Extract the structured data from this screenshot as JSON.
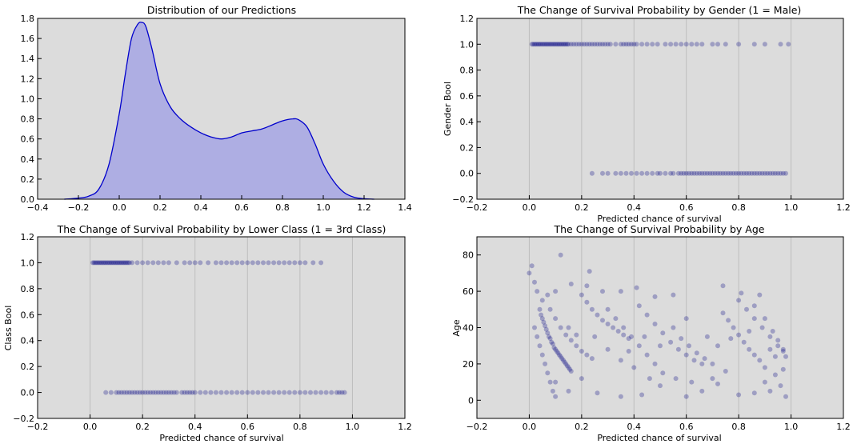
{
  "chart_data": [
    {
      "type": "area",
      "title": "Distribution of our Predictions",
      "xlabel": "",
      "ylabel": "",
      "xlim": [
        -0.4,
        1.4
      ],
      "ylim": [
        0.0,
        1.8
      ],
      "xticks": [
        "−0.4",
        "−0.2",
        "0.0",
        "0.2",
        "0.4",
        "0.6",
        "0.8",
        "1.0",
        "1.2",
        "1.4"
      ],
      "yticks": [
        "0.0",
        "0.2",
        "0.4",
        "0.6",
        "0.8",
        "1.0",
        "1.2",
        "1.4",
        "1.6",
        "1.8"
      ],
      "grid": false,
      "colors": {
        "line": "#0000cc",
        "fill": "#aeaee3",
        "background": "#dcdcdc"
      },
      "x": [
        -0.27,
        -0.2,
        -0.15,
        -0.1,
        -0.05,
        0.0,
        0.03,
        0.06,
        0.09,
        0.11,
        0.13,
        0.16,
        0.2,
        0.25,
        0.3,
        0.35,
        0.4,
        0.45,
        0.5,
        0.55,
        0.6,
        0.65,
        0.7,
        0.75,
        0.8,
        0.85,
        0.88,
        0.92,
        0.96,
        1.0,
        1.05,
        1.1,
        1.15,
        1.2,
        1.25
      ],
      "y": [
        0.0,
        0.01,
        0.03,
        0.1,
        0.35,
        0.85,
        1.25,
        1.6,
        1.74,
        1.76,
        1.72,
        1.5,
        1.15,
        0.92,
        0.8,
        0.72,
        0.66,
        0.62,
        0.6,
        0.62,
        0.66,
        0.68,
        0.7,
        0.74,
        0.78,
        0.8,
        0.79,
        0.72,
        0.55,
        0.35,
        0.18,
        0.07,
        0.02,
        0.005,
        0.0
      ]
    },
    {
      "type": "scatter",
      "title": "The Change of Survival Probability by Gender (1 = Male)",
      "xlabel": "Predicted chance of survival",
      "ylabel": "Gender Bool",
      "xlim": [
        -0.2,
        1.2
      ],
      "ylim": [
        -0.2,
        1.2
      ],
      "xticks": [
        "−0.2",
        "0.0",
        "0.2",
        "0.4",
        "0.6",
        "0.8",
        "1.0",
        "1.2"
      ],
      "yticks": [
        "−0.2",
        "0.0",
        "0.2",
        "0.4",
        "0.6",
        "0.8",
        "1.0",
        "1.2"
      ],
      "grid": true,
      "colors": {
        "marker": "#000080",
        "background": "#dcdcdc",
        "grid": "#bfbfbf"
      },
      "series": [
        {
          "y": 1,
          "x": [
            0.01,
            0.015,
            0.02,
            0.025,
            0.03,
            0.035,
            0.04,
            0.045,
            0.05,
            0.055,
            0.06,
            0.065,
            0.07,
            0.075,
            0.08,
            0.085,
            0.09,
            0.095,
            0.1,
            0.105,
            0.11,
            0.115,
            0.12,
            0.125,
            0.13,
            0.135,
            0.14,
            0.145,
            0.15,
            0.16,
            0.17,
            0.18,
            0.19,
            0.2,
            0.21,
            0.22,
            0.23,
            0.24,
            0.25,
            0.26,
            0.27,
            0.28,
            0.29,
            0.3,
            0.31,
            0.33,
            0.35,
            0.36,
            0.37,
            0.38,
            0.39,
            0.4,
            0.41,
            0.43,
            0.45,
            0.47,
            0.49,
            0.52,
            0.54,
            0.56,
            0.58,
            0.6,
            0.62,
            0.64,
            0.66,
            0.7,
            0.72,
            0.75,
            0.8,
            0.86,
            0.9,
            0.96,
            0.99
          ]
        },
        {
          "y": 0,
          "x": [
            0.24,
            0.28,
            0.3,
            0.33,
            0.35,
            0.37,
            0.39,
            0.41,
            0.43,
            0.45,
            0.47,
            0.49,
            0.5,
            0.52,
            0.54,
            0.55,
            0.57,
            0.58,
            0.59,
            0.6,
            0.61,
            0.62,
            0.63,
            0.64,
            0.65,
            0.66,
            0.67,
            0.68,
            0.69,
            0.7,
            0.71,
            0.72,
            0.73,
            0.74,
            0.75,
            0.76,
            0.77,
            0.78,
            0.79,
            0.8,
            0.81,
            0.82,
            0.83,
            0.84,
            0.85,
            0.86,
            0.87,
            0.88,
            0.89,
            0.9,
            0.91,
            0.92,
            0.93,
            0.94,
            0.95,
            0.96,
            0.97,
            0.98
          ]
        }
      ]
    },
    {
      "type": "scatter",
      "title": "The Change of Survival Probability by Lower Class (1 = 3rd Class)",
      "xlabel": "Predicted chance of survival",
      "ylabel": "Class Bool",
      "xlim": [
        -0.2,
        1.2
      ],
      "ylim": [
        -0.2,
        1.2
      ],
      "xticks": [
        "−0.2",
        "0.0",
        "0.2",
        "0.4",
        "0.6",
        "0.8",
        "1.0",
        "1.2"
      ],
      "yticks": [
        "−0.2",
        "0.0",
        "0.2",
        "0.4",
        "0.6",
        "0.8",
        "1.0",
        "1.2"
      ],
      "grid": true,
      "colors": {
        "marker": "#000080",
        "background": "#dcdcdc",
        "grid": "#bfbfbf"
      },
      "series": [
        {
          "y": 1,
          "x": [
            0.01,
            0.015,
            0.02,
            0.025,
            0.03,
            0.035,
            0.04,
            0.045,
            0.05,
            0.055,
            0.06,
            0.065,
            0.07,
            0.075,
            0.08,
            0.085,
            0.09,
            0.095,
            0.1,
            0.105,
            0.11,
            0.115,
            0.12,
            0.125,
            0.13,
            0.135,
            0.14,
            0.145,
            0.15,
            0.16,
            0.18,
            0.2,
            0.22,
            0.24,
            0.26,
            0.28,
            0.3,
            0.33,
            0.36,
            0.38,
            0.4,
            0.42,
            0.45,
            0.48,
            0.5,
            0.52,
            0.54,
            0.56,
            0.58,
            0.6,
            0.62,
            0.64,
            0.66,
            0.68,
            0.7,
            0.72,
            0.74,
            0.76,
            0.78,
            0.8,
            0.82,
            0.85,
            0.88
          ]
        },
        {
          "y": 0,
          "x": [
            0.06,
            0.08,
            0.1,
            0.11,
            0.12,
            0.13,
            0.14,
            0.15,
            0.16,
            0.17,
            0.18,
            0.19,
            0.2,
            0.21,
            0.22,
            0.23,
            0.24,
            0.25,
            0.26,
            0.27,
            0.28,
            0.29,
            0.3,
            0.31,
            0.32,
            0.33,
            0.35,
            0.36,
            0.37,
            0.38,
            0.39,
            0.4,
            0.42,
            0.44,
            0.46,
            0.48,
            0.5,
            0.52,
            0.54,
            0.56,
            0.58,
            0.6,
            0.62,
            0.64,
            0.66,
            0.68,
            0.7,
            0.72,
            0.74,
            0.76,
            0.78,
            0.8,
            0.82,
            0.84,
            0.86,
            0.88,
            0.9,
            0.92,
            0.94,
            0.95,
            0.96,
            0.97
          ]
        }
      ]
    },
    {
      "type": "scatter",
      "title": "The Change of Survival Probability by Age",
      "xlabel": "Predicted chance of survival",
      "ylabel": "Age",
      "xlim": [
        -0.2,
        1.2
      ],
      "ylim": [
        -10,
        90
      ],
      "xticks": [
        "−0.2",
        "0.0",
        "0.2",
        "0.4",
        "0.6",
        "0.8",
        "1.0",
        "1.2"
      ],
      "yticks": [
        "0",
        "20",
        "40",
        "60",
        "80"
      ],
      "grid": true,
      "colors": {
        "marker": "#000080",
        "background": "#dcdcdc",
        "grid": "#bfbfbf"
      },
      "points": [
        [
          0.0,
          70
        ],
        [
          0.01,
          74
        ],
        [
          0.02,
          65
        ],
        [
          0.03,
          60
        ],
        [
          0.05,
          55
        ],
        [
          0.07,
          58
        ],
        [
          0.1,
          60
        ],
        [
          0.12,
          80
        ],
        [
          0.16,
          64
        ],
        [
          0.23,
          71
        ],
        [
          0.22,
          63
        ],
        [
          0.28,
          60
        ],
        [
          0.35,
          60
        ],
        [
          0.41,
          62
        ],
        [
          0.48,
          57
        ],
        [
          0.55,
          58
        ],
        [
          0.74,
          63
        ],
        [
          0.81,
          59
        ],
        [
          0.88,
          58
        ],
        [
          0.04,
          50
        ],
        [
          0.045,
          47
        ],
        [
          0.05,
          45
        ],
        [
          0.055,
          43
        ],
        [
          0.06,
          41
        ],
        [
          0.065,
          39
        ],
        [
          0.07,
          37
        ],
        [
          0.075,
          35
        ],
        [
          0.08,
          34
        ],
        [
          0.085,
          32
        ],
        [
          0.09,
          31
        ],
        [
          0.095,
          29
        ],
        [
          0.1,
          28
        ],
        [
          0.105,
          27
        ],
        [
          0.11,
          26
        ],
        [
          0.115,
          25
        ],
        [
          0.12,
          24
        ],
        [
          0.125,
          23
        ],
        [
          0.13,
          22
        ],
        [
          0.135,
          21
        ],
        [
          0.14,
          20
        ],
        [
          0.145,
          19
        ],
        [
          0.15,
          18
        ],
        [
          0.155,
          17
        ],
        [
          0.16,
          16
        ],
        [
          0.02,
          40
        ],
        [
          0.03,
          35
        ],
        [
          0.04,
          30
        ],
        [
          0.05,
          25
        ],
        [
          0.06,
          20
        ],
        [
          0.07,
          15
        ],
        [
          0.08,
          10
        ],
        [
          0.09,
          5
        ],
        [
          0.1,
          2
        ],
        [
          0.08,
          50
        ],
        [
          0.1,
          45
        ],
        [
          0.12,
          40
        ],
        [
          0.14,
          36
        ],
        [
          0.16,
          33
        ],
        [
          0.18,
          30
        ],
        [
          0.2,
          27
        ],
        [
          0.22,
          25
        ],
        [
          0.24,
          23
        ],
        [
          0.2,
          58
        ],
        [
          0.22,
          54
        ],
        [
          0.24,
          50
        ],
        [
          0.26,
          47
        ],
        [
          0.28,
          44
        ],
        [
          0.3,
          42
        ],
        [
          0.32,
          40
        ],
        [
          0.34,
          38
        ],
        [
          0.36,
          36
        ],
        [
          0.38,
          34
        ],
        [
          0.3,
          50
        ],
        [
          0.33,
          45
        ],
        [
          0.36,
          40
        ],
        [
          0.39,
          35
        ],
        [
          0.42,
          30
        ],
        [
          0.45,
          25
        ],
        [
          0.48,
          20
        ],
        [
          0.51,
          15
        ],
        [
          0.42,
          52
        ],
        [
          0.45,
          47
        ],
        [
          0.48,
          42
        ],
        [
          0.51,
          37
        ],
        [
          0.54,
          32
        ],
        [
          0.57,
          28
        ],
        [
          0.6,
          25
        ],
        [
          0.63,
          22
        ],
        [
          0.66,
          20
        ],
        [
          0.55,
          40
        ],
        [
          0.58,
          34
        ],
        [
          0.61,
          30
        ],
        [
          0.64,
          26
        ],
        [
          0.67,
          23
        ],
        [
          0.7,
          20
        ],
        [
          0.74,
          48
        ],
        [
          0.76,
          44
        ],
        [
          0.78,
          40
        ],
        [
          0.8,
          36
        ],
        [
          0.82,
          32
        ],
        [
          0.84,
          28
        ],
        [
          0.86,
          25
        ],
        [
          0.88,
          22
        ],
        [
          0.9,
          18
        ],
        [
          0.8,
          55
        ],
        [
          0.83,
          50
        ],
        [
          0.86,
          45
        ],
        [
          0.89,
          40
        ],
        [
          0.92,
          35
        ],
        [
          0.95,
          30
        ],
        [
          0.97,
          27
        ],
        [
          0.98,
          24
        ],
        [
          0.86,
          52
        ],
        [
          0.9,
          45
        ],
        [
          0.93,
          38
        ],
        [
          0.95,
          33
        ],
        [
          0.97,
          28
        ],
        [
          0.1,
          10
        ],
        [
          0.15,
          5
        ],
        [
          0.2,
          12
        ],
        [
          0.26,
          4
        ],
        [
          0.35,
          2
        ],
        [
          0.43,
          3
        ],
        [
          0.5,
          8
        ],
        [
          0.6,
          2
        ],
        [
          0.66,
          5
        ],
        [
          0.72,
          9
        ],
        [
          0.8,
          3
        ],
        [
          0.86,
          4
        ],
        [
          0.92,
          5
        ],
        [
          0.96,
          8
        ],
        [
          0.98,
          2
        ],
        [
          0.35,
          22
        ],
        [
          0.4,
          18
        ],
        [
          0.46,
          12
        ],
        [
          0.56,
          12
        ],
        [
          0.62,
          10
        ],
        [
          0.7,
          12
        ],
        [
          0.75,
          16
        ],
        [
          0.9,
          10
        ],
        [
          0.94,
          14
        ],
        [
          0.97,
          17
        ],
        [
          0.15,
          40
        ],
        [
          0.18,
          36
        ],
        [
          0.25,
          35
        ],
        [
          0.3,
          28
        ],
        [
          0.38,
          27
        ],
        [
          0.44,
          35
        ],
        [
          0.5,
          30
        ],
        [
          0.6,
          45
        ],
        [
          0.68,
          35
        ],
        [
          0.72,
          30
        ],
        [
          0.77,
          34
        ],
        [
          0.84,
          38
        ],
        [
          0.92,
          28
        ],
        [
          0.94,
          24
        ]
      ]
    }
  ]
}
